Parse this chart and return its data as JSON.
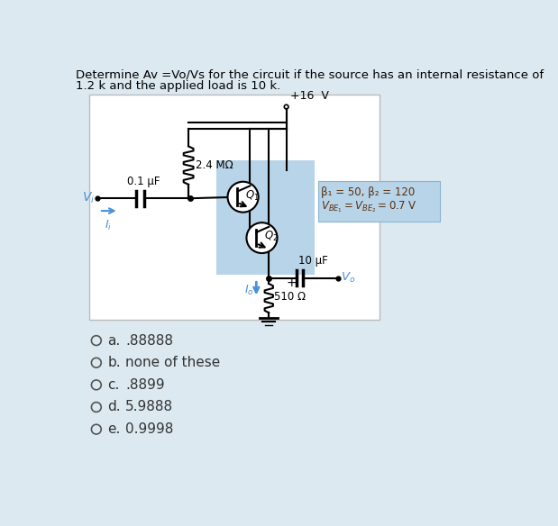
{
  "bg_color": "#dce9f0",
  "circuit_bg": "#b8d4e8",
  "white": "#ffffff",
  "black": "#000000",
  "blue": "#4a90d9",
  "title_text1": "Determine Av =Vo/Vs for the circuit if the source has an internal resistance of",
  "title_text2": "1.2 k and the applied load is 10 k.",
  "vcc_label": "+16  V",
  "resistor1_label": "2.4 MΩ",
  "cap1_label": "0.1 μF",
  "vi_label": "V",
  "vi_sub": "i",
  "ii_label": "I",
  "ii_sub": "i",
  "q1_label": "Q",
  "q1_sub": "1",
  "q2_label": "Q",
  "q2_sub": "2",
  "beta_label": "β₁ = 50, β₂ = 120",
  "vbe_label1": "V",
  "vbe_label2": "BE₁",
  "vbe_label3": " = V",
  "vbe_label4": "BE₂",
  "vbe_label5": " = 0.7 V",
  "io_label": "I",
  "io_sub": "o",
  "cap2_label": "10 μF",
  "resistor2_label": "510 Ω",
  "vo_label": "V",
  "vo_sub": "o",
  "options": [
    {
      "letter": "a.",
      "text": ".88888"
    },
    {
      "letter": "b.",
      "text": "none of these"
    },
    {
      "letter": "c.",
      "text": ".8899"
    },
    {
      "letter": "d.",
      "text": "5.9888"
    },
    {
      "letter": "e.",
      "text": "0.9998"
    }
  ]
}
